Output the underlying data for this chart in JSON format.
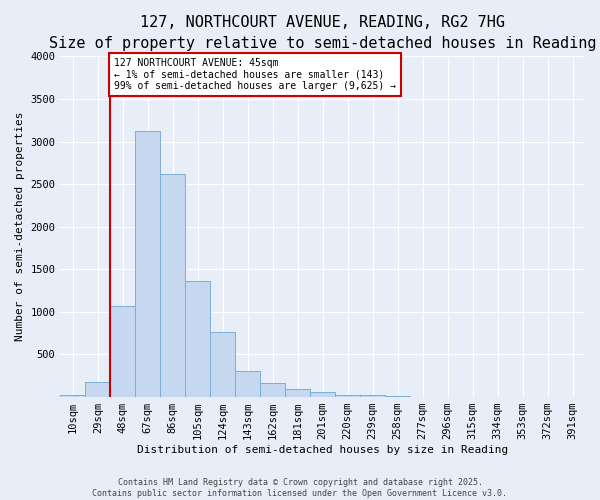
{
  "title": "127, NORTHCOURT AVENUE, READING, RG2 7HG",
  "subtitle": "Size of property relative to semi-detached houses in Reading",
  "xlabel": "Distribution of semi-detached houses by size in Reading",
  "ylabel": "Number of semi-detached properties",
  "categories": [
    "10sqm",
    "29sqm",
    "48sqm",
    "67sqm",
    "86sqm",
    "105sqm",
    "124sqm",
    "143sqm",
    "162sqm",
    "181sqm",
    "201sqm",
    "220sqm",
    "239sqm",
    "258sqm",
    "277sqm",
    "296sqm",
    "315sqm",
    "334sqm",
    "353sqm",
    "372sqm",
    "391sqm"
  ],
  "values": [
    20,
    180,
    1070,
    3120,
    2620,
    1360,
    760,
    310,
    160,
    90,
    55,
    30,
    20,
    10,
    5,
    3,
    2,
    1,
    1,
    1,
    1
  ],
  "bar_color": "#c5d8f0",
  "bar_edge_color": "#7bafd4",
  "vline_x_index": 1.5,
  "vline_color": "#cc0000",
  "annotation_text": "127 NORTHCOURT AVENUE: 45sqm\n← 1% of semi-detached houses are smaller (143)\n99% of semi-detached houses are larger (9,625) →",
  "annotation_box_color": "#ffffff",
  "annotation_box_edge": "#cc0000",
  "ylim": [
    0,
    4000
  ],
  "yticks": [
    0,
    500,
    1000,
    1500,
    2000,
    2500,
    3000,
    3500,
    4000
  ],
  "footer_line1": "Contains HM Land Registry data © Crown copyright and database right 2025.",
  "footer_line2": "Contains public sector information licensed under the Open Government Licence v3.0.",
  "bg_color": "#e8eef8",
  "plot_bg_color": "#e8eef8",
  "grid_color": "#ffffff",
  "title_fontsize": 11,
  "subtitle_fontsize": 9,
  "axis_label_fontsize": 8,
  "tick_fontsize": 7.5,
  "annotation_fontsize": 7,
  "footer_fontsize": 6
}
